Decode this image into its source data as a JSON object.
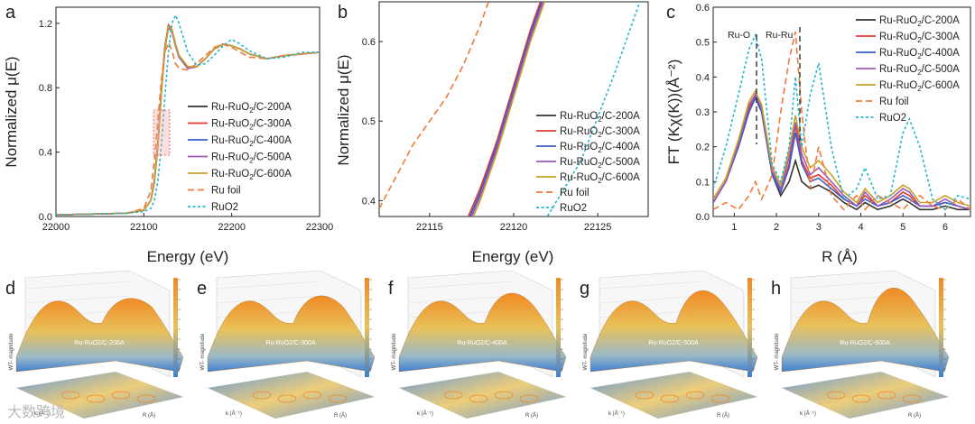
{
  "chart_data": [
    {
      "panel": "a",
      "type": "line",
      "xlabel": "Energy (eV)",
      "ylabel": "Normalized μ(E)",
      "xlim": [
        22000,
        22300
      ],
      "ylim": [
        0,
        1.3
      ],
      "xticks": [
        "22000",
        "22100",
        "22200",
        "22300"
      ],
      "yticks": [
        "0.0",
        "0.4",
        "0.8",
        "1.2"
      ],
      "x": [
        22000,
        22080,
        22100,
        22108,
        22112,
        22116,
        22120,
        22124,
        22128,
        22132,
        22136,
        22140,
        22150,
        22160,
        22170,
        22180,
        22190,
        22200,
        22210,
        22220,
        22240,
        22260,
        22280,
        22300
      ],
      "series": [
        {
          "name": "Ru-RuO2/C-200A",
          "color": "#333333",
          "dash": "solid",
          "values": [
            0.01,
            0.02,
            0.04,
            0.1,
            0.22,
            0.45,
            0.78,
            1.05,
            1.18,
            1.15,
            1.06,
            0.99,
            0.92,
            0.93,
            0.98,
            1.04,
            1.07,
            1.06,
            1.04,
            1.01,
            0.98,
            1.0,
            1.01,
            1.02
          ]
        },
        {
          "name": "Ru-RuO2/C-300A",
          "color": "#e53935",
          "dash": "solid",
          "values": [
            0.01,
            0.02,
            0.04,
            0.1,
            0.22,
            0.46,
            0.79,
            1.06,
            1.19,
            1.16,
            1.07,
            1.0,
            0.93,
            0.93,
            0.98,
            1.04,
            1.07,
            1.06,
            1.04,
            1.01,
            0.98,
            1.0,
            1.01,
            1.02
          ]
        },
        {
          "name": "Ru-RuO2/C-400A",
          "color": "#3a5fcd",
          "dash": "solid",
          "values": [
            0.01,
            0.02,
            0.04,
            0.1,
            0.22,
            0.45,
            0.78,
            1.05,
            1.18,
            1.16,
            1.07,
            0.99,
            0.92,
            0.93,
            0.98,
            1.04,
            1.07,
            1.06,
            1.04,
            1.01,
            0.98,
            1.0,
            1.01,
            1.02
          ]
        },
        {
          "name": "Ru-RuO2/C-500A",
          "color": "#9b59b6",
          "dash": "solid",
          "values": [
            0.01,
            0.02,
            0.04,
            0.1,
            0.21,
            0.44,
            0.77,
            1.04,
            1.17,
            1.15,
            1.06,
            0.99,
            0.92,
            0.93,
            0.98,
            1.04,
            1.07,
            1.06,
            1.04,
            1.01,
            0.98,
            1.0,
            1.01,
            1.02
          ]
        },
        {
          "name": "Ru-RuO2/C-600A",
          "color": "#c9a227",
          "dash": "solid",
          "values": [
            0.01,
            0.02,
            0.04,
            0.1,
            0.21,
            0.44,
            0.77,
            1.04,
            1.18,
            1.16,
            1.07,
            1.0,
            0.93,
            0.93,
            0.98,
            1.04,
            1.07,
            1.06,
            1.04,
            1.01,
            0.98,
            1.0,
            1.01,
            1.02
          ]
        },
        {
          "name": "Ru foil",
          "color": "#f07a3a",
          "dash": "dash",
          "values": [
            0.01,
            0.02,
            0.05,
            0.16,
            0.35,
            0.6,
            0.85,
            1.02,
            1.08,
            1.03,
            0.95,
            0.92,
            0.91,
            0.95,
            1.0,
            1.05,
            1.07,
            1.05,
            1.02,
            0.99,
            0.98,
            1.0,
            1.01,
            1.02
          ]
        },
        {
          "name": "RuO2",
          "color": "#26b7d0",
          "dash": "dot",
          "values": [
            0.01,
            0.02,
            0.03,
            0.05,
            0.1,
            0.22,
            0.45,
            0.75,
            1.02,
            1.2,
            1.25,
            1.2,
            1.02,
            0.94,
            0.95,
            1.0,
            1.06,
            1.1,
            1.07,
            1.03,
            0.98,
            0.99,
            1.02,
            1.02
          ]
        }
      ]
    },
    {
      "panel": "b",
      "type": "line",
      "xlabel": "Energy (eV)",
      "ylabel": "Normalized μ(E)",
      "xlim": [
        22112,
        22128
      ],
      "ylim": [
        0.38,
        0.65
      ],
      "xticks": [
        "22115",
        "22120",
        "22125"
      ],
      "yticks": [
        "0.4",
        "0.5",
        "0.6"
      ],
      "x": [
        22112,
        22114,
        22116,
        22117,
        22118,
        22119,
        22120,
        22121,
        22122,
        22124,
        22126,
        22128
      ],
      "series": [
        {
          "name": "Ru-RuO2/C-200A",
          "color": "#333333",
          "dash": "solid",
          "values": [
            null,
            null,
            null,
            0.36,
            0.41,
            0.47,
            0.54,
            0.61,
            0.67,
            null,
            null,
            null
          ]
        },
        {
          "name": "Ru-RuO2/C-300A",
          "color": "#e53935",
          "dash": "solid",
          "values": [
            null,
            null,
            null,
            0.365,
            0.415,
            0.475,
            0.545,
            0.615,
            0.675,
            null,
            null,
            null
          ]
        },
        {
          "name": "Ru-RuO2/C-400A",
          "color": "#3a5fcd",
          "dash": "solid",
          "values": [
            null,
            null,
            null,
            0.36,
            0.41,
            0.47,
            0.54,
            0.61,
            0.67,
            null,
            null,
            null
          ]
        },
        {
          "name": "Ru-RuO2/C-500A",
          "color": "#9b59b6",
          "dash": "solid",
          "values": [
            null,
            null,
            null,
            0.355,
            0.405,
            0.465,
            0.535,
            0.605,
            0.665,
            null,
            null,
            null
          ]
        },
        {
          "name": "Ru-RuO2/C-600A",
          "color": "#c9a227",
          "dash": "solid",
          "values": [
            null,
            null,
            null,
            0.35,
            0.4,
            0.46,
            0.53,
            0.6,
            0.66,
            null,
            null,
            null
          ]
        },
        {
          "name": "Ru foil",
          "color": "#f07a3a",
          "dash": "dash",
          "values": [
            0.39,
            0.47,
            0.53,
            0.57,
            0.62,
            0.68,
            null,
            null,
            null,
            null,
            null,
            null
          ]
        },
        {
          "name": "RuO2",
          "color": "#26b7d0",
          "dash": "dot",
          "values": [
            null,
            null,
            null,
            null,
            null,
            null,
            null,
            0.35,
            0.38,
            0.45,
            0.56,
            0.68
          ]
        }
      ]
    },
    {
      "panel": "c",
      "type": "line",
      "xlabel": "R (Å)",
      "ylabel": "FT (Kχ(K))(Å⁻²)",
      "xlim": [
        0.5,
        6.6
      ],
      "ylim": [
        0,
        0.6
      ],
      "xticks": [
        "1",
        "2",
        "3",
        "4",
        "5",
        "6"
      ],
      "yticks": [
        "0.0",
        "0.1",
        "0.2",
        "0.3",
        "0.4",
        "0.5",
        "0.6"
      ],
      "annotations": [
        "Ru-O",
        "Ru-Ru"
      ],
      "x": [
        0.5,
        0.8,
        1.1,
        1.35,
        1.5,
        1.65,
        1.9,
        2.1,
        2.3,
        2.45,
        2.6,
        2.8,
        3.0,
        3.3,
        3.6,
        3.9,
        4.1,
        4.4,
        4.7,
        5.0,
        5.15,
        5.4,
        5.7,
        6.0,
        6.3,
        6.6
      ],
      "series": [
        {
          "name": "Ru-RuO2/C-200A",
          "color": "#333333",
          "dash": "solid",
          "values": [
            0.04,
            0.1,
            0.2,
            0.3,
            0.34,
            0.3,
            0.12,
            0.06,
            0.1,
            0.16,
            0.1,
            0.08,
            0.09,
            0.07,
            0.04,
            0.02,
            0.04,
            0.02,
            0.03,
            0.05,
            0.04,
            0.02,
            0.02,
            0.03,
            0.02,
            0.02
          ]
        },
        {
          "name": "Ru-RuO2/C-300A",
          "color": "#e53935",
          "dash": "solid",
          "values": [
            0.04,
            0.1,
            0.21,
            0.31,
            0.35,
            0.31,
            0.13,
            0.07,
            0.15,
            0.26,
            0.16,
            0.11,
            0.12,
            0.09,
            0.05,
            0.03,
            0.06,
            0.03,
            0.04,
            0.07,
            0.06,
            0.03,
            0.03,
            0.04,
            0.03,
            0.02
          ]
        },
        {
          "name": "Ru-RuO2/C-400A",
          "color": "#3a5fcd",
          "dash": "solid",
          "values": [
            0.04,
            0.1,
            0.2,
            0.3,
            0.34,
            0.3,
            0.12,
            0.07,
            0.14,
            0.24,
            0.15,
            0.1,
            0.11,
            0.08,
            0.05,
            0.03,
            0.05,
            0.03,
            0.04,
            0.06,
            0.05,
            0.03,
            0.03,
            0.04,
            0.03,
            0.02
          ]
        },
        {
          "name": "Ru-RuO2/C-500A",
          "color": "#9b59b6",
          "dash": "solid",
          "values": [
            0.04,
            0.1,
            0.21,
            0.32,
            0.35,
            0.31,
            0.13,
            0.08,
            0.17,
            0.27,
            0.18,
            0.12,
            0.14,
            0.1,
            0.06,
            0.03,
            0.07,
            0.03,
            0.05,
            0.08,
            0.07,
            0.03,
            0.03,
            0.05,
            0.03,
            0.02
          ]
        },
        {
          "name": "Ru-RuO2/C-600A",
          "color": "#c9a227",
          "dash": "solid",
          "values": [
            0.05,
            0.11,
            0.22,
            0.33,
            0.36,
            0.32,
            0.14,
            0.09,
            0.19,
            0.29,
            0.2,
            0.14,
            0.16,
            0.12,
            0.07,
            0.04,
            0.08,
            0.04,
            0.06,
            0.09,
            0.08,
            0.04,
            0.04,
            0.06,
            0.04,
            0.03
          ]
        },
        {
          "name": "Ru foil",
          "color": "#f07a3a",
          "dash": "dash",
          "values": [
            0.02,
            0.04,
            0.02,
            0.06,
            0.1,
            0.05,
            0.12,
            0.3,
            0.45,
            0.53,
            0.3,
            0.08,
            0.2,
            0.06,
            0.02,
            0.06,
            0.02,
            0.06,
            0.04,
            0.02,
            0.04,
            0.06,
            0.03,
            0.02,
            0.05,
            0.02
          ]
        },
        {
          "name": "RuO2",
          "color": "#26b7d0",
          "dash": "dot",
          "values": [
            0.08,
            0.2,
            0.35,
            0.48,
            0.52,
            0.45,
            0.15,
            0.1,
            0.2,
            0.4,
            0.2,
            0.35,
            0.44,
            0.2,
            0.05,
            0.08,
            0.14,
            0.05,
            0.06,
            0.24,
            0.28,
            0.2,
            0.05,
            0.02,
            0.06,
            0.05
          ]
        }
      ]
    }
  ],
  "legend_labels": [
    {
      "pre": "Ru-RuO",
      "sub": "2",
      "post": "/C-200A"
    },
    {
      "pre": "Ru-RuO",
      "sub": "2",
      "post": "/C-300A"
    },
    {
      "pre": "Ru-RuO",
      "sub": "2",
      "post": "/C-400A"
    },
    {
      "pre": "Ru-RuO",
      "sub": "2",
      "post": "/C-500A"
    },
    {
      "pre": "Ru-RuO",
      "sub": "2",
      "post": "/C-600A"
    },
    {
      "pre": "Ru foil",
      "sub": "",
      "post": ""
    },
    {
      "pre": "RuO2",
      "sub": "",
      "post": ""
    }
  ],
  "panels": {
    "letters": [
      "a",
      "b",
      "c",
      "d",
      "e",
      "f",
      "g",
      "h"
    ]
  },
  "wt_plots": [
    {
      "letter": "d",
      "label": "Ru-RuO2/C-200A"
    },
    {
      "letter": "e",
      "label": "Ru-RuO2/C-300A"
    },
    {
      "letter": "f",
      "label": "Ru-RuO2/C-400A"
    },
    {
      "letter": "g",
      "label": "Ru-RuO2/C-500A"
    },
    {
      "letter": "h",
      "label": "Ru-RuO2/C-600A"
    }
  ],
  "wt_axes": {
    "zlabel": "WT- magnitude",
    "xlabel": "k (Å⁻¹)",
    "ylabel": "R (Å)"
  },
  "watermark": "大数跨境",
  "colors": {
    "low": "#3f7fd0",
    "mid": "#e8c15a",
    "high": "#f08a24"
  }
}
